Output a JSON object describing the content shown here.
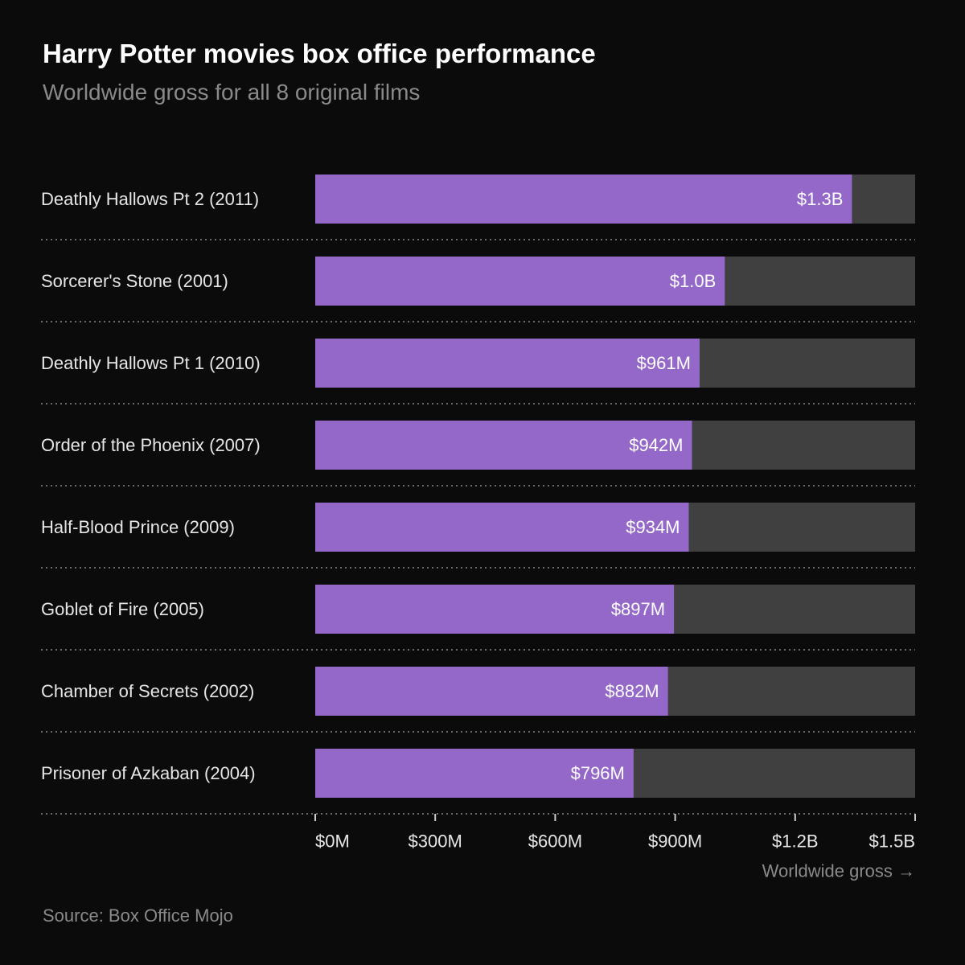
{
  "title": "Harry Potter movies box office performance",
  "subtitle": "Worldwide gross for all 8 original films",
  "source": "Source: Box Office Mojo",
  "colors": {
    "background": "#0b0b0b",
    "bar_fill": "#9468c8",
    "bar_track": "#404040",
    "label_text": "#e6e6e6",
    "muted_text": "#8a8a8a",
    "divider": "#8a8a8a"
  },
  "chart_data": {
    "type": "bar",
    "orientation": "horizontal",
    "categories": [
      "Deathly Hallows Pt 2 (2011)",
      "Sorcerer's Stone (2001)",
      "Deathly Hallows Pt 1 (2010)",
      "Order of the Phoenix (2007)",
      "Half-Blood Prince (2009)",
      "Goblet of Fire (2005)",
      "Chamber of Secrets (2002)",
      "Prisoner of Azkaban (2004)"
    ],
    "values": [
      1342,
      1024,
      961,
      942,
      934,
      897,
      882,
      796
    ],
    "value_labels": [
      "$1.3B",
      "$1.0B",
      "$961M",
      "$942M",
      "$934M",
      "$897M",
      "$882M",
      "$796M"
    ],
    "xlim": [
      0,
      1500
    ],
    "x_ticks": [
      0,
      300,
      600,
      900,
      1200,
      1500
    ],
    "x_tick_labels": [
      "$0M",
      "$300M",
      "$600M",
      "$900M",
      "$1.2B",
      "$1.5B"
    ],
    "xlabel": "Worldwide gross →",
    "grid": false,
    "legend": "none"
  }
}
